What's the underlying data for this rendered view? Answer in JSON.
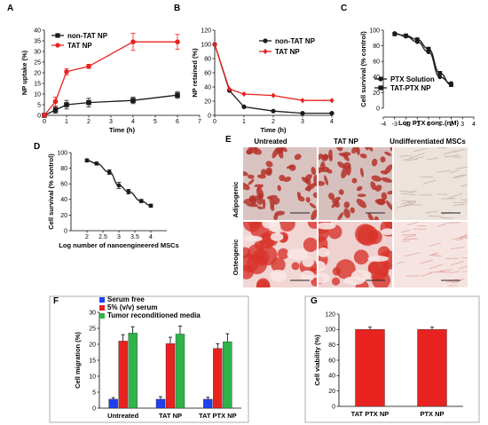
{
  "colors": {
    "red": "#e8221f",
    "black": "#1a1a1a",
    "blue": "#1f3ff0",
    "green": "#2fb34a",
    "border": "#999999",
    "stain_red": "#c0392b",
    "stain_bg_pink": "#e9c6c6",
    "stain_bg_light": "#ece4de"
  },
  "panel_labels": [
    "A",
    "B",
    "C",
    "D",
    "E",
    "F",
    "G"
  ],
  "panel_e": {
    "col_headers": [
      "Untreated",
      "TAT NP",
      "Undifferentiated MSCs"
    ],
    "row_labels": [
      "Adipogenic",
      "Osteogenic"
    ]
  },
  "chart_data": [
    {
      "id": "A",
      "type": "line",
      "xlabel": "Time (h)",
      "ylabel": "NP uptake (%)",
      "xlim": [
        0,
        7
      ],
      "ylim": [
        0,
        40
      ],
      "xticks": [
        0,
        1,
        2,
        3,
        4,
        5,
        6,
        7
      ],
      "yticks": [
        0,
        5,
        10,
        15,
        20,
        25,
        30,
        35,
        40
      ],
      "legend_position": "top-left",
      "series": [
        {
          "name": "non-TAT NP",
          "color": "black",
          "marker": "square",
          "x": [
            0,
            0.5,
            1,
            2,
            4,
            6
          ],
          "y": [
            0,
            2.5,
            5,
            6,
            7,
            9.5
          ],
          "err": [
            0.5,
            1.5,
            2,
            2,
            1.5,
            1.5
          ]
        },
        {
          "name": "TAT NP",
          "color": "red",
          "marker": "circle",
          "x": [
            0,
            0.5,
            1,
            2,
            4,
            6
          ],
          "y": [
            0,
            6.5,
            20.5,
            23,
            34.5,
            34.5
          ],
          "err": [
            0.5,
            2,
            1.5,
            1,
            4,
            3.5
          ]
        }
      ]
    },
    {
      "id": "B",
      "type": "line",
      "xlabel": "Time (h)",
      "ylabel": "NP retained (%)",
      "xlim": [
        0,
        4
      ],
      "ylim": [
        0,
        120
      ],
      "xticks": [
        0,
        1,
        2,
        3,
        4
      ],
      "yticks": [
        0,
        20,
        40,
        60,
        80,
        100,
        120
      ],
      "legend_position": "top-right",
      "series": [
        {
          "name": "non-TAT NP",
          "color": "black",
          "marker": "circle",
          "x": [
            0,
            0.5,
            1,
            2,
            3,
            4
          ],
          "y": [
            100,
            35,
            12,
            6,
            3,
            3
          ]
        },
        {
          "name": "TAT NP",
          "color": "red",
          "marker": "diamond",
          "x": [
            0,
            0.5,
            1,
            2,
            3,
            4
          ],
          "y": [
            100,
            37,
            30,
            28,
            21,
            21
          ]
        }
      ]
    },
    {
      "id": "C",
      "type": "line",
      "xlabel": "Log PTX conc.(nM)",
      "ylabel": "Cell survival (% control)",
      "xlim": [
        -4,
        4
      ],
      "ylim": [
        0,
        100
      ],
      "xticks": [
        -4,
        -3,
        -2,
        -1,
        0,
        1,
        2,
        3,
        4
      ],
      "yticks": [
        0,
        20,
        40,
        60,
        80,
        100
      ],
      "legend_position": "bottom-left",
      "series": [
        {
          "name": "PTX Solution",
          "color": "black",
          "marker": "circle",
          "x": [
            -3,
            -2,
            -1,
            0,
            1,
            2
          ],
          "y": [
            96,
            92,
            85,
            72,
            40,
            32
          ]
        },
        {
          "name": "TAT-PTX NP",
          "color": "black",
          "marker": "square",
          "x": [
            -3,
            -2,
            -1,
            0,
            1,
            2
          ],
          "y": [
            95,
            93,
            88,
            76,
            45,
            30
          ]
        }
      ]
    },
    {
      "id": "D",
      "type": "line",
      "xlabel": "Log number of nanoengineered MSCs",
      "ylabel": "Cell survival (% control)",
      "xlim": [
        1.5,
        4.5
      ],
      "ylim": [
        0,
        100
      ],
      "xticks": [
        2,
        2.5,
        3,
        3.5,
        4
      ],
      "yticks": [
        0,
        20,
        40,
        60,
        80,
        100
      ],
      "series": [
        {
          "name": "",
          "color": "black",
          "marker": "circle",
          "x": [
            2,
            2.3,
            2.7,
            3.0,
            3.3,
            3.7,
            4.0
          ],
          "y": [
            90,
            86,
            75,
            58,
            50,
            38,
            32
          ],
          "err": [
            2,
            2,
            3,
            4,
            3,
            2,
            2
          ]
        }
      ]
    },
    {
      "id": "F",
      "type": "bar",
      "ylabel": "Cell migration (%)",
      "ylim": [
        0,
        30
      ],
      "yticks": [
        0,
        5,
        10,
        15,
        20,
        25,
        30
      ],
      "categories": [
        "Untreated",
        "TAT NP",
        "TAT PTX NP"
      ],
      "legend_position": "top-left",
      "series": [
        {
          "name": "Serum free",
          "color": "blue",
          "values": [
            2.8,
            2.8,
            2.8
          ],
          "err": [
            0.5,
            0.8,
            0.6
          ]
        },
        {
          "name": "5% (v/v) serum",
          "color": "red",
          "values": [
            21,
            20.2,
            18.7
          ],
          "err": [
            2,
            2,
            1.5
          ]
        },
        {
          "name": "Tumor reconditioned media",
          "color": "green",
          "values": [
            23.5,
            23.2,
            20.8
          ],
          "err": [
            2,
            2.5,
            2.5
          ]
        }
      ]
    },
    {
      "id": "G",
      "type": "bar",
      "ylabel": "Cell viability (%)",
      "ylim": [
        0,
        120
      ],
      "yticks": [
        0,
        20,
        40,
        60,
        80,
        100,
        120
      ],
      "categories": [
        "TAT PTX NP",
        "PTX NP"
      ],
      "series": [
        {
          "name": "",
          "color": "red",
          "values": [
            100,
            100
          ],
          "err": [
            3,
            3
          ]
        }
      ]
    }
  ]
}
